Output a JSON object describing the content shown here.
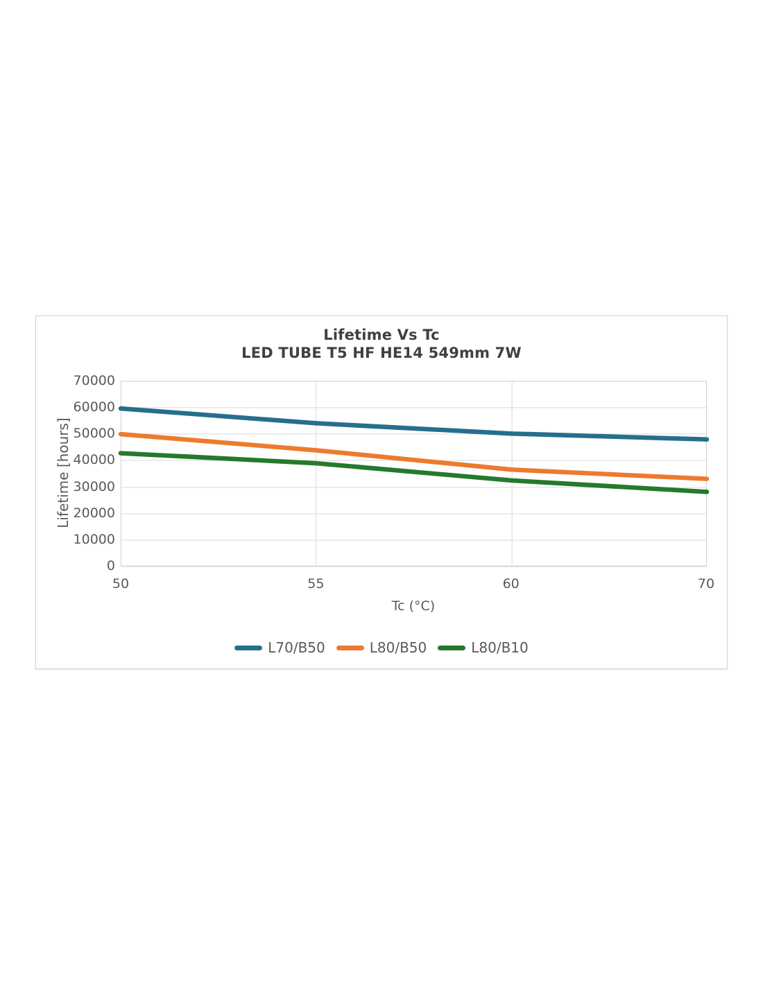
{
  "panel": {
    "background": "#ffffff",
    "border_color": "#d4d4d4"
  },
  "colors": {
    "title_text": "#404040",
    "axis_text": "#595959",
    "gridline": "#d9d9d9",
    "plot_border": "#d0d0d0"
  },
  "chart_data": {
    "type": "line",
    "title": "Lifetime Vs Tc",
    "subtitle": "LED TUBE T5 HF HE14 549mm 7W",
    "xlabel": "Tc (°C)",
    "ylabel": "Lifetime [hours]",
    "x": [
      50,
      55,
      60,
      70
    ],
    "x_tick_labels": [
      "50",
      "55",
      "60",
      "70"
    ],
    "x_spacing": "equidistant",
    "ylim": [
      0,
      70000
    ],
    "y_ticks": [
      0,
      10000,
      20000,
      30000,
      40000,
      50000,
      60000,
      70000
    ],
    "y_tick_labels": [
      "0",
      "10000",
      "20000",
      "30000",
      "40000",
      "50000",
      "60000",
      "70000"
    ],
    "grid": {
      "horizontal": true,
      "vertical_at": [
        "55",
        "60"
      ],
      "color": "#d9d9d9"
    },
    "series": [
      {
        "name": "L70/B50",
        "color": "#266f8c",
        "values": [
          59600,
          54000,
          50100,
          47900
        ]
      },
      {
        "name": "L80/B50",
        "color": "#ed7a2e",
        "values": [
          49900,
          43800,
          36500,
          33000
        ]
      },
      {
        "name": "L80/B10",
        "color": "#26792b",
        "values": [
          42700,
          38900,
          32400,
          28100
        ]
      }
    ],
    "legend_position": "bottom",
    "line_width": 6.5
  }
}
